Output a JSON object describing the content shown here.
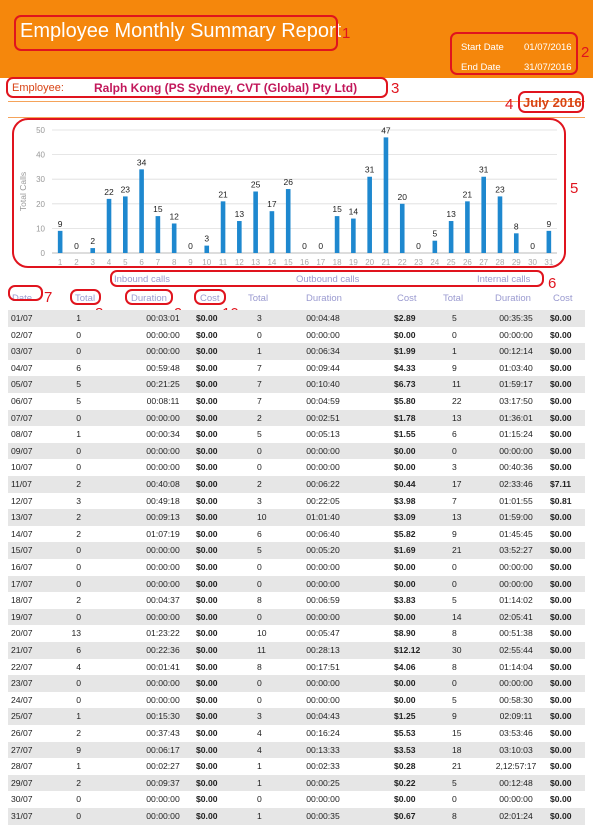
{
  "report": {
    "title": "Employee Monthly Summary Report",
    "start_label": "Start Date",
    "start_value": "01/07/2016",
    "end_label": "End Date",
    "end_value": "31/07/2016",
    "employee_label": "Employee:",
    "employee_name": "Ralph Kong (PS Sydney,  CVT (Global) Pty Ltd)",
    "month": "July 2016"
  },
  "annotations": [
    "1",
    "2",
    "3",
    "4",
    "5",
    "6",
    "7",
    "8",
    "9",
    "10"
  ],
  "chart_data": {
    "type": "bar",
    "categories": [
      "1",
      "2",
      "3",
      "4",
      "5",
      "6",
      "7",
      "8",
      "9",
      "10",
      "11",
      "12",
      "13",
      "14",
      "15",
      "16",
      "17",
      "18",
      "19",
      "20",
      "21",
      "22",
      "23",
      "24",
      "25",
      "26",
      "27",
      "28",
      "29",
      "30",
      "31"
    ],
    "values": [
      9,
      0,
      2,
      22,
      23,
      34,
      15,
      12,
      0,
      3,
      21,
      13,
      25,
      17,
      26,
      0,
      0,
      15,
      14,
      31,
      47,
      20,
      0,
      5,
      13,
      21,
      31,
      23,
      8,
      0,
      9
    ],
    "ylabel": "Total Calls",
    "ylim": [
      0,
      50
    ],
    "yticks": [
      0,
      10,
      20,
      30,
      40,
      50
    ],
    "grid": true
  },
  "table": {
    "groups": [
      "Inbound calls",
      "Outbound calls",
      "Internal calls"
    ],
    "headers": [
      "Date",
      "Total",
      "Duration",
      "Cost",
      "Total",
      "Duration",
      "Cost",
      "Total",
      "Duration",
      "Cost"
    ],
    "rows": [
      [
        "01/07",
        "1",
        "00:03:01",
        "$0.00",
        "3",
        "00:04:48",
        "$2.89",
        "5",
        "00:35:35",
        "$0.00"
      ],
      [
        "02/07",
        "0",
        "00:00:00",
        "$0.00",
        "0",
        "00:00:00",
        "$0.00",
        "0",
        "00:00:00",
        "$0.00"
      ],
      [
        "03/07",
        "0",
        "00:00:00",
        "$0.00",
        "1",
        "00:06:34",
        "$1.99",
        "1",
        "00:12:14",
        "$0.00"
      ],
      [
        "04/07",
        "6",
        "00:59:48",
        "$0.00",
        "7",
        "00:09:44",
        "$4.33",
        "9",
        "01:03:40",
        "$0.00"
      ],
      [
        "05/07",
        "5",
        "00:21:25",
        "$0.00",
        "7",
        "00:10:40",
        "$6.73",
        "11",
        "01:59:17",
        "$0.00"
      ],
      [
        "06/07",
        "5",
        "00:08:11",
        "$0.00",
        "7",
        "00:04:59",
        "$5.80",
        "22",
        "03:17:50",
        "$0.00"
      ],
      [
        "07/07",
        "0",
        "00:00:00",
        "$0.00",
        "2",
        "00:02:51",
        "$1.78",
        "13",
        "01:36:01",
        "$0.00"
      ],
      [
        "08/07",
        "1",
        "00:00:34",
        "$0.00",
        "5",
        "00:05:13",
        "$1.55",
        "6",
        "01:15:24",
        "$0.00"
      ],
      [
        "09/07",
        "0",
        "00:00:00",
        "$0.00",
        "0",
        "00:00:00",
        "$0.00",
        "0",
        "00:00:00",
        "$0.00"
      ],
      [
        "10/07",
        "0",
        "00:00:00",
        "$0.00",
        "0",
        "00:00:00",
        "$0.00",
        "3",
        "00:40:36",
        "$0.00"
      ],
      [
        "11/07",
        "2",
        "00:40:08",
        "$0.00",
        "2",
        "00:06:22",
        "$0.44",
        "17",
        "02:33:46",
        "$7.11"
      ],
      [
        "12/07",
        "3",
        "00:49:18",
        "$0.00",
        "3",
        "00:22:05",
        "$3.98",
        "7",
        "01:01:55",
        "$0.81"
      ],
      [
        "13/07",
        "2",
        "00:09:13",
        "$0.00",
        "10",
        "01:01:40",
        "$3.09",
        "13",
        "01:59:00",
        "$0.00"
      ],
      [
        "14/07",
        "2",
        "01:07:19",
        "$0.00",
        "6",
        "00:06:40",
        "$5.82",
        "9",
        "01:45:45",
        "$0.00"
      ],
      [
        "15/07",
        "0",
        "00:00:00",
        "$0.00",
        "5",
        "00:05:20",
        "$1.69",
        "21",
        "03:52:27",
        "$0.00"
      ],
      [
        "16/07",
        "0",
        "00:00:00",
        "$0.00",
        "0",
        "00:00:00",
        "$0.00",
        "0",
        "00:00:00",
        "$0.00"
      ],
      [
        "17/07",
        "0",
        "00:00:00",
        "$0.00",
        "0",
        "00:00:00",
        "$0.00",
        "0",
        "00:00:00",
        "$0.00"
      ],
      [
        "18/07",
        "2",
        "00:04:37",
        "$0.00",
        "8",
        "00:06:59",
        "$3.83",
        "5",
        "01:14:02",
        "$0.00"
      ],
      [
        "19/07",
        "0",
        "00:00:00",
        "$0.00",
        "0",
        "00:00:00",
        "$0.00",
        "14",
        "02:05:41",
        "$0.00"
      ],
      [
        "20/07",
        "13",
        "01:23:22",
        "$0.00",
        "10",
        "00:05:47",
        "$8.90",
        "8",
        "00:51:38",
        "$0.00"
      ],
      [
        "21/07",
        "6",
        "00:22:36",
        "$0.00",
        "11",
        "00:28:13",
        "$12.12",
        "30",
        "02:55:44",
        "$0.00"
      ],
      [
        "22/07",
        "4",
        "00:01:41",
        "$0.00",
        "8",
        "00:17:51",
        "$4.06",
        "8",
        "01:14:04",
        "$0.00"
      ],
      [
        "23/07",
        "0",
        "00:00:00",
        "$0.00",
        "0",
        "00:00:00",
        "$0.00",
        "0",
        "00:00:00",
        "$0.00"
      ],
      [
        "24/07",
        "0",
        "00:00:00",
        "$0.00",
        "0",
        "00:00:00",
        "$0.00",
        "5",
        "00:58:30",
        "$0.00"
      ],
      [
        "25/07",
        "1",
        "00:15:30",
        "$0.00",
        "3",
        "00:04:43",
        "$1.25",
        "9",
        "02:09:11",
        "$0.00"
      ],
      [
        "26/07",
        "2",
        "00:37:43",
        "$0.00",
        "4",
        "00:16:24",
        "$5.53",
        "15",
        "03:53:46",
        "$0.00"
      ],
      [
        "27/07",
        "9",
        "00:06:17",
        "$0.00",
        "4",
        "00:13:33",
        "$3.53",
        "18",
        "03:10:03",
        "$0.00"
      ],
      [
        "28/07",
        "1",
        "00:02:27",
        "$0.00",
        "1",
        "00:02:33",
        "$0.28",
        "21",
        "2,12:57:17",
        "$0.00"
      ],
      [
        "29/07",
        "2",
        "00:09:37",
        "$0.00",
        "1",
        "00:00:25",
        "$0.22",
        "5",
        "00:12:48",
        "$0.00"
      ],
      [
        "30/07",
        "0",
        "00:00:00",
        "$0.00",
        "0",
        "00:00:00",
        "$0.00",
        "0",
        "00:00:00",
        "$0.00"
      ],
      [
        "31/07",
        "0",
        "00:00:00",
        "$0.00",
        "1",
        "00:00:35",
        "$0.67",
        "8",
        "02:01:24",
        "$0.00"
      ]
    ]
  },
  "colors": {
    "header": "#f5870c",
    "bar": "#1e88cf",
    "annotation": "#e0141e",
    "grid": "#dddddd"
  }
}
